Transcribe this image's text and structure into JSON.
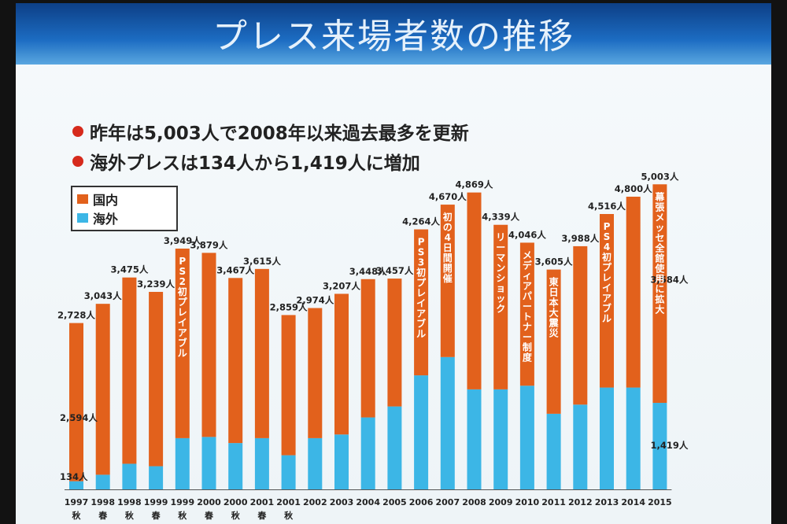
{
  "title": "プレス来場者数の推移",
  "bullets": [
    "昨年は5,003人で2008年以来過去最多を更新",
    "海外プレスは134人から1,419人に増加"
  ],
  "legend": {
    "domestic": "国内",
    "overseas": "海外"
  },
  "colors": {
    "domestic": "#e2611c",
    "overseas": "#3cb6e6",
    "banner": "#1552a3",
    "bullet": "#d62a1c"
  },
  "chart_data": {
    "type": "bar",
    "stacked": true,
    "categories": [
      {
        "year": "1997",
        "season": "秋"
      },
      {
        "year": "1998",
        "season": "春"
      },
      {
        "year": "1998",
        "season": "秋"
      },
      {
        "year": "1999",
        "season": "春"
      },
      {
        "year": "1999",
        "season": "秋"
      },
      {
        "year": "2000",
        "season": "春"
      },
      {
        "year": "2000",
        "season": "秋"
      },
      {
        "year": "2001",
        "season": "春"
      },
      {
        "year": "2001",
        "season": "秋"
      },
      {
        "year": "2002",
        "season": ""
      },
      {
        "year": "2003",
        "season": ""
      },
      {
        "year": "2004",
        "season": ""
      },
      {
        "year": "2005",
        "season": ""
      },
      {
        "year": "2006",
        "season": ""
      },
      {
        "year": "2007",
        "season": ""
      },
      {
        "year": "2008",
        "season": ""
      },
      {
        "year": "2009",
        "season": ""
      },
      {
        "year": "2010",
        "season": ""
      },
      {
        "year": "2011",
        "season": ""
      },
      {
        "year": "2012",
        "season": ""
      },
      {
        "year": "2013",
        "season": ""
      },
      {
        "year": "2014",
        "season": ""
      },
      {
        "year": "2015",
        "season": ""
      }
    ],
    "totals": [
      2728,
      3043,
      3475,
      3239,
      3949,
      3879,
      3467,
      3615,
      2859,
      2974,
      3207,
      3448,
      3457,
      4264,
      4670,
      4869,
      4339,
      4046,
      3605,
      3988,
      4516,
      4800,
      5003
    ],
    "total_labels": [
      "2,728人",
      "3,043人",
      "3,475人",
      "3,239人",
      "3,949人",
      "3,879人",
      "3,467人",
      "3,615人",
      "2,859人",
      "2,974人",
      "3,207人",
      "3,448人",
      "3,457人",
      "4,264人",
      "4,670人",
      "4,869人",
      "4,339人",
      "4,046人",
      "3,605人",
      "3,988人",
      "4,516人",
      "4,800人",
      "5,003人"
    ],
    "series": [
      {
        "name": "海外",
        "values": [
          134,
          240,
          420,
          380,
          840,
          860,
          760,
          840,
          560,
          840,
          900,
          1180,
          1360,
          1870,
          2170,
          1640,
          1640,
          1700,
          1240,
          1390,
          1670,
          1670,
          1419
        ]
      },
      {
        "name": "国内",
        "values": [
          2594,
          2803,
          3055,
          2859,
          3109,
          3019,
          2707,
          2775,
          2299,
          2134,
          2307,
          2268,
          2097,
          2394,
          2500,
          3229,
          2699,
          2346,
          2365,
          2598,
          2846,
          3130,
          3584
        ]
      }
    ],
    "value_labels": [
      {
        "index": 0,
        "series": "国内",
        "text": "2,594人"
      },
      {
        "index": 0,
        "series": "海外",
        "text": "134人"
      },
      {
        "index": 22,
        "series": "国内",
        "text": "3,584人"
      },
      {
        "index": 22,
        "series": "海外",
        "text": "1,419人"
      }
    ],
    "annotations": [
      {
        "index": 4,
        "text": "PS2初プレイアブル"
      },
      {
        "index": 13,
        "text": "PS3初プレイアブル"
      },
      {
        "index": 14,
        "text": "初の4日間開催"
      },
      {
        "index": 16,
        "text": "リーマンショック"
      },
      {
        "index": 17,
        "text": "メディアパートナー制度"
      },
      {
        "index": 18,
        "text": "東日本大震災"
      },
      {
        "index": 20,
        "text": "PS4初プレイアブル"
      },
      {
        "index": 22,
        "text": "幕張メッセ全館使用に拡大"
      }
    ],
    "legend_position": "top-left",
    "grid": false
  }
}
